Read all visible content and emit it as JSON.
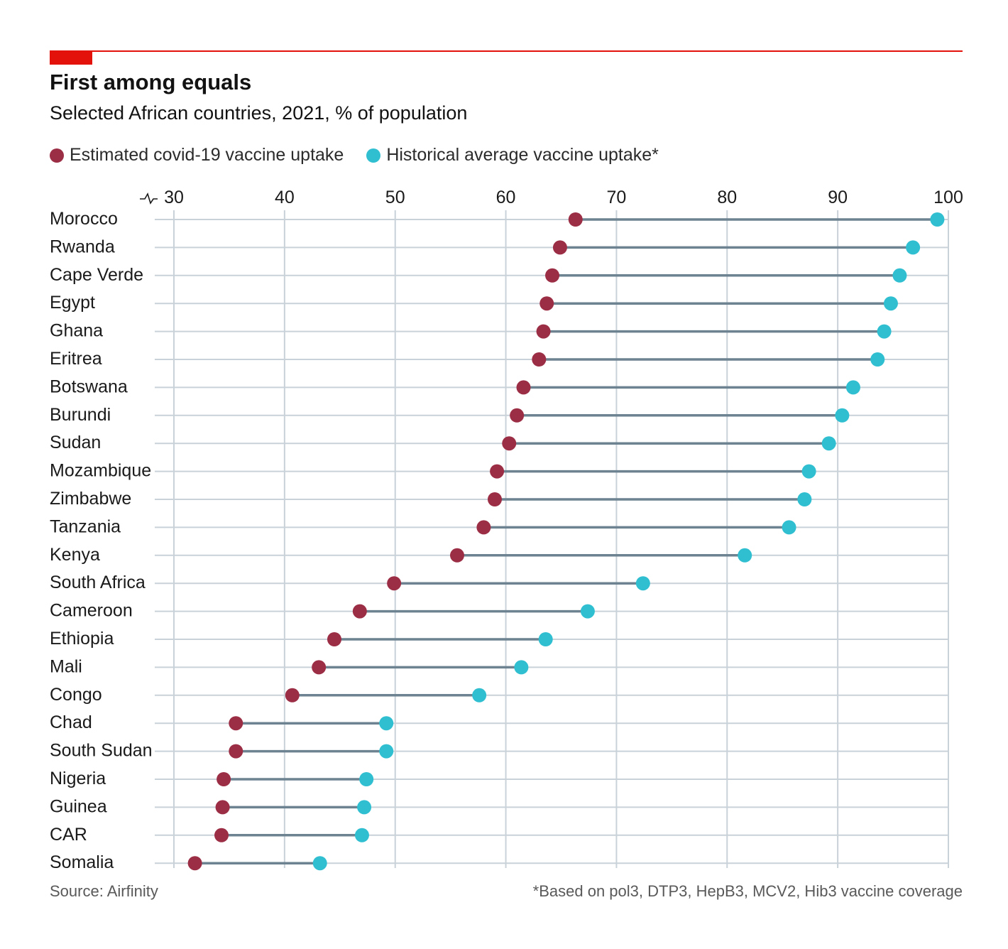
{
  "header": {
    "title": "First among equals",
    "subtitle": "Selected African countries, 2021, % of population"
  },
  "legend": {
    "covid_label": "Estimated covid-19 vaccine uptake",
    "historical_label": "Historical average vaccine uptake*"
  },
  "footer": {
    "source": "Source: Airfinity",
    "note": "*Based on pol3, DTP3, HepB3, MCV2, Hib3 vaccine coverage"
  },
  "colors": {
    "accent": "#e3120b",
    "covid": "#9b2d45",
    "historical": "#2fbfd1",
    "connector": "#6e8391",
    "grid": "#c9d2d9"
  },
  "chart_data": {
    "type": "dumbbell",
    "title": "First among equals",
    "subtitle": "Selected African countries, 2021, % of population",
    "xlim": [
      30,
      100
    ],
    "xticks": [
      30,
      40,
      50,
      60,
      70,
      80,
      90,
      100
    ],
    "categories": [
      "Morocco",
      "Rwanda",
      "Cape Verde",
      "Egypt",
      "Ghana",
      "Eritrea",
      "Botswana",
      "Burundi",
      "Sudan",
      "Mozambique",
      "Zimbabwe",
      "Tanzania",
      "Kenya",
      "South Africa",
      "Cameroon",
      "Ethiopia",
      "Mali",
      "Congo",
      "Chad",
      "South Sudan",
      "Nigeria",
      "Guinea",
      "CAR",
      "Somalia"
    ],
    "series": [
      {
        "name": "Estimated covid-19 vaccine uptake",
        "values": [
          66.3,
          64.9,
          64.2,
          63.7,
          63.4,
          63.0,
          61.6,
          61.0,
          60.3,
          59.2,
          59.0,
          58.0,
          55.6,
          49.9,
          46.8,
          44.5,
          43.1,
          40.7,
          35.6,
          35.6,
          34.5,
          34.4,
          34.3,
          31.9
        ]
      },
      {
        "name": "Historical average vaccine uptake*",
        "values": [
          99.0,
          96.8,
          95.6,
          94.8,
          94.2,
          93.6,
          91.4,
          90.4,
          89.2,
          87.4,
          87.0,
          85.6,
          81.6,
          72.4,
          67.4,
          63.6,
          61.4,
          57.6,
          49.2,
          49.2,
          47.4,
          47.2,
          47.0,
          43.2
        ]
      }
    ],
    "source": "Source: Airfinity",
    "note": "*Based on pol3, DTP3, HepB3, MCV2, Hib3 vaccine coverage"
  }
}
